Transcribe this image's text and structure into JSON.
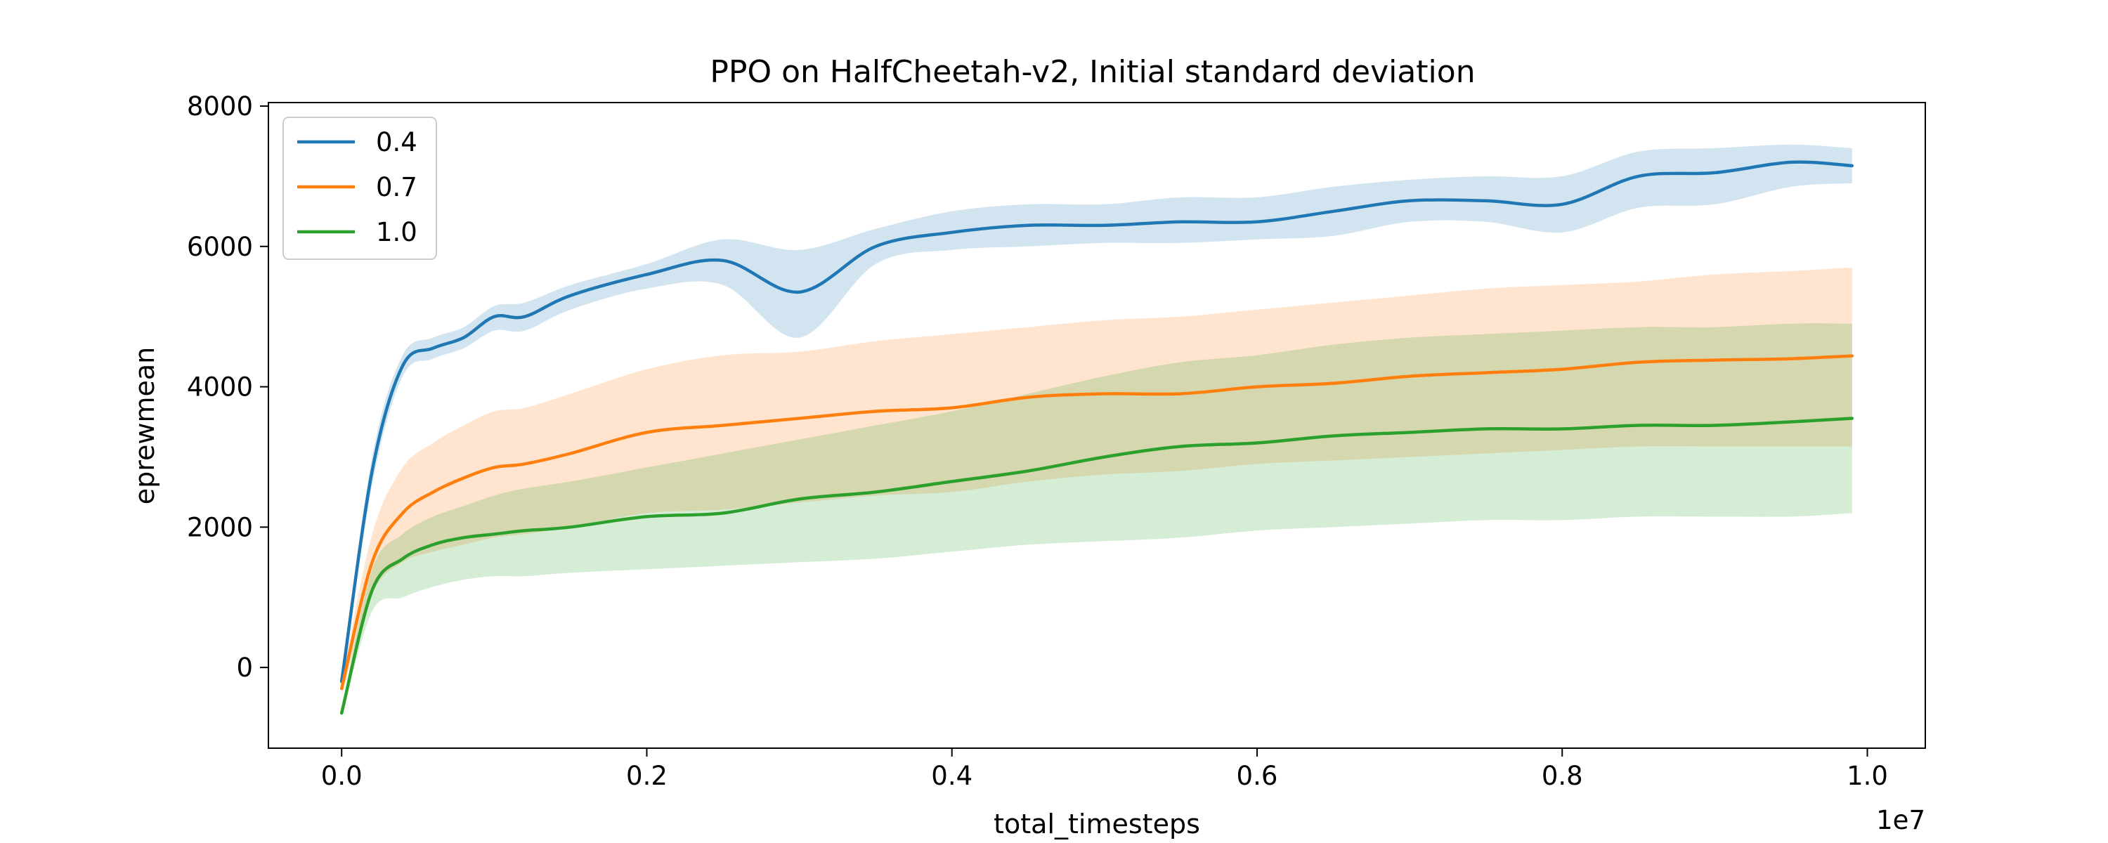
{
  "chart_data": {
    "type": "line",
    "title": "PPO on HalfCheetah-v2, Initial standard deviation",
    "xlabel": "total_timesteps",
    "ylabel": "eprewmean",
    "x_offset_label": "1e7",
    "xlim": [
      -0.048,
      1.038
    ],
    "ylim": [
      -1150,
      8050
    ],
    "xticks": [
      0.0,
      0.2,
      0.4,
      0.6,
      0.8,
      1.0
    ],
    "xtick_labels": [
      "0.0",
      "0.2",
      "0.4",
      "0.6",
      "0.8",
      "1.0"
    ],
    "yticks": [
      0,
      2000,
      4000,
      6000,
      8000
    ],
    "ytick_labels": [
      "0",
      "2000",
      "4000",
      "6000",
      "8000"
    ],
    "grid": false,
    "legend_position": "top-left",
    "x": [
      0.0,
      0.02,
      0.04,
      0.06,
      0.08,
      0.1,
      0.12,
      0.15,
      0.2,
      0.25,
      0.3,
      0.35,
      0.4,
      0.45,
      0.5,
      0.55,
      0.6,
      0.65,
      0.7,
      0.75,
      0.8,
      0.85,
      0.9,
      0.95,
      0.99
    ],
    "series": [
      {
        "name": "0.4",
        "color": "#1f77b4",
        "mean": [
          -200,
          2800,
          4300,
          4550,
          4700,
          5000,
          5000,
          5300,
          5600,
          5800,
          5350,
          6000,
          6200,
          6300,
          6300,
          6350,
          6350,
          6500,
          6650,
          6650,
          6600,
          7000,
          7050,
          7200,
          7150
        ],
        "lower": [
          -300,
          2600,
          4150,
          4400,
          4550,
          4800,
          4800,
          5100,
          5400,
          5450,
          4700,
          5750,
          5950,
          6000,
          6050,
          6050,
          6100,
          6150,
          6350,
          6350,
          6200,
          6550,
          6600,
          6850,
          6900
        ],
        "upper": [
          -100,
          3000,
          4450,
          4700,
          4850,
          5150,
          5200,
          5450,
          5750,
          6100,
          5950,
          6250,
          6500,
          6600,
          6600,
          6700,
          6700,
          6850,
          6950,
          7000,
          7000,
          7350,
          7400,
          7450,
          7400
        ]
      },
      {
        "name": "0.7",
        "color": "#ff7f0e",
        "mean": [
          -300,
          1500,
          2200,
          2500,
          2700,
          2850,
          2900,
          3050,
          3350,
          3450,
          3550,
          3650,
          3700,
          3850,
          3900,
          3900,
          4000,
          4050,
          4150,
          4200,
          4250,
          4350,
          4380,
          4400,
          4440
        ],
        "lower": [
          -400,
          1050,
          1500,
          1650,
          1750,
          1850,
          1900,
          2000,
          2200,
          2250,
          2350,
          2450,
          2500,
          2650,
          2750,
          2800,
          2900,
          2950,
          3000,
          3050,
          3100,
          3150,
          3150,
          3150,
          3150
        ],
        "upper": [
          -200,
          1900,
          2850,
          3200,
          3450,
          3650,
          3700,
          3900,
          4250,
          4450,
          4500,
          4650,
          4750,
          4850,
          4950,
          5000,
          5100,
          5200,
          5300,
          5400,
          5450,
          5500,
          5600,
          5650,
          5700
        ]
      },
      {
        "name": "1.0",
        "color": "#2ca02c",
        "mean": [
          -650,
          1100,
          1550,
          1750,
          1850,
          1900,
          1950,
          2000,
          2150,
          2200,
          2400,
          2500,
          2650,
          2800,
          3000,
          3150,
          3200,
          3300,
          3350,
          3400,
          3400,
          3450,
          3450,
          3500,
          3550
        ],
        "lower": [
          -700,
          800,
          1000,
          1150,
          1250,
          1300,
          1300,
          1350,
          1400,
          1450,
          1500,
          1550,
          1650,
          1750,
          1800,
          1850,
          1950,
          2000,
          2050,
          2100,
          2100,
          2150,
          2150,
          2150,
          2200
        ],
        "upper": [
          -600,
          1400,
          1900,
          2150,
          2300,
          2450,
          2550,
          2650,
          2850,
          3050,
          3250,
          3450,
          3650,
          3900,
          4150,
          4350,
          4450,
          4600,
          4700,
          4750,
          4800,
          4850,
          4850,
          4900,
          4900
        ]
      }
    ]
  }
}
